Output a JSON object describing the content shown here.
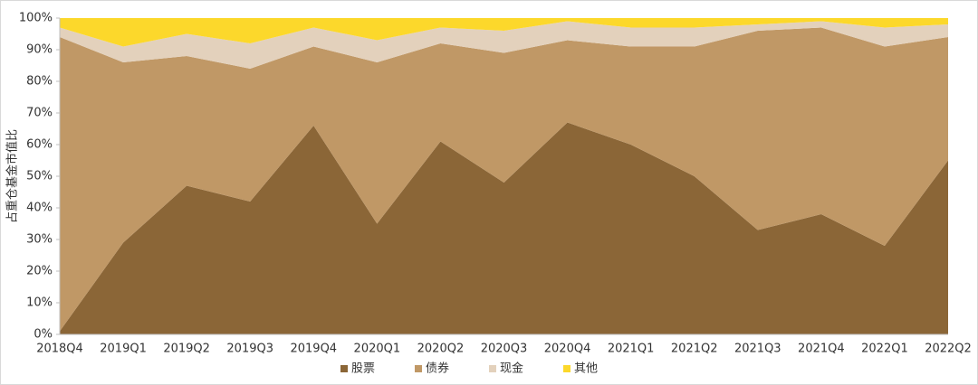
{
  "chart_data": {
    "type": "stacked_area",
    "y_label": "占重仓基金市值比",
    "categories": [
      "2018Q4",
      "2019Q1",
      "2019Q2",
      "2019Q3",
      "2019Q4",
      "2020Q1",
      "2020Q2",
      "2020Q3",
      "2020Q4",
      "2021Q1",
      "2021Q2",
      "2021Q3",
      "2021Q4",
      "2022Q1",
      "2022Q2"
    ],
    "series": [
      {
        "name": "股票",
        "color": "#8b6637",
        "values": [
          1,
          29,
          47,
          42,
          66,
          35,
          61,
          48,
          67,
          60,
          50,
          33,
          38,
          28,
          55
        ]
      },
      {
        "name": "债券",
        "color": "#c09866",
        "values": [
          93,
          57,
          41,
          42,
          25,
          51,
          31,
          41,
          26,
          31,
          41,
          63,
          59,
          63,
          39
        ]
      },
      {
        "name": "现金",
        "color": "#e3d1bc",
        "values": [
          3,
          5,
          7,
          8,
          6,
          7,
          5,
          7,
          6,
          6,
          6,
          2,
          2,
          6,
          4
        ]
      },
      {
        "name": "其他",
        "color": "#fcd82b",
        "values": [
          3,
          9,
          5,
          8,
          3,
          7,
          3,
          4,
          1,
          3,
          3,
          2,
          1,
          3,
          2
        ]
      }
    ],
    "ylim": [
      0,
      100
    ],
    "yticks": [
      {
        "value": 0,
        "label": "0%"
      },
      {
        "value": 10,
        "label": "10%"
      },
      {
        "value": 20,
        "label": "20%"
      },
      {
        "value": 30,
        "label": "30%"
      },
      {
        "value": 40,
        "label": "40%"
      },
      {
        "value": 50,
        "label": "50%"
      },
      {
        "value": 60,
        "label": "60%"
      },
      {
        "value": 70,
        "label": "70%"
      },
      {
        "value": 80,
        "label": "80%"
      },
      {
        "value": 90,
        "label": "90%"
      },
      {
        "value": 100,
        "label": "100%"
      }
    ],
    "legend": "bottom"
  }
}
